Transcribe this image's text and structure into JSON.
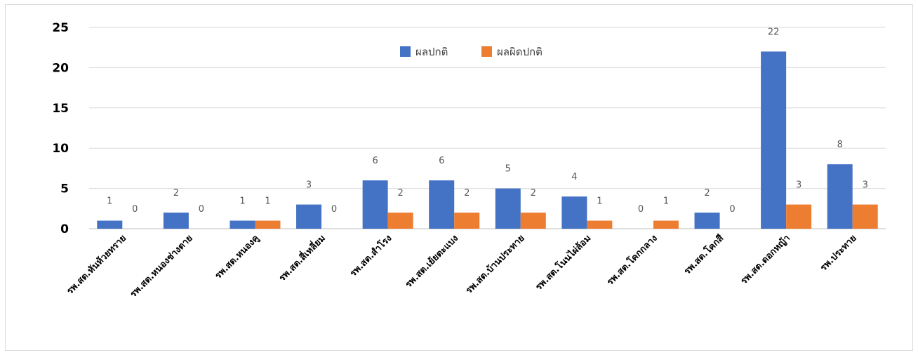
{
  "chart_data": {
    "type": "bar",
    "title": "",
    "xlabel": "",
    "ylabel": "",
    "ylim": [
      0,
      25
    ],
    "yticks": [
      0,
      5,
      10,
      15,
      20,
      25
    ],
    "grid": true,
    "legend_position": "top-center",
    "categories": [
      "รพ.สต.หันห้วยทราย",
      "รพ.สต.หนองช่างตาย",
      "รพ.สต.หนองคู",
      "รพ.สต.สี่เหลี่ยม",
      "รพ.สต.สำโรง",
      "รพ.สต.เย้ยตะแบง",
      "รพ.สต.บ้านประทาย",
      "รพ.สต.โนนไผ่ล้อม",
      "รพ.สต.โคกกลาง",
      "รพ.สต.โคกสี",
      "รพ.สต.ดอกหญ้า",
      "รพ.ประทาย"
    ],
    "series": [
      {
        "name": "ผลปกติ",
        "color": "#4472c4",
        "values": [
          1,
          2,
          1,
          3,
          6,
          6,
          5,
          4,
          0,
          2,
          22,
          8
        ]
      },
      {
        "name": "ผลผิดปกติ",
        "color": "#ed7d31",
        "values": [
          0,
          0,
          1,
          0,
          2,
          2,
          2,
          1,
          1,
          0,
          3,
          3
        ]
      }
    ]
  }
}
